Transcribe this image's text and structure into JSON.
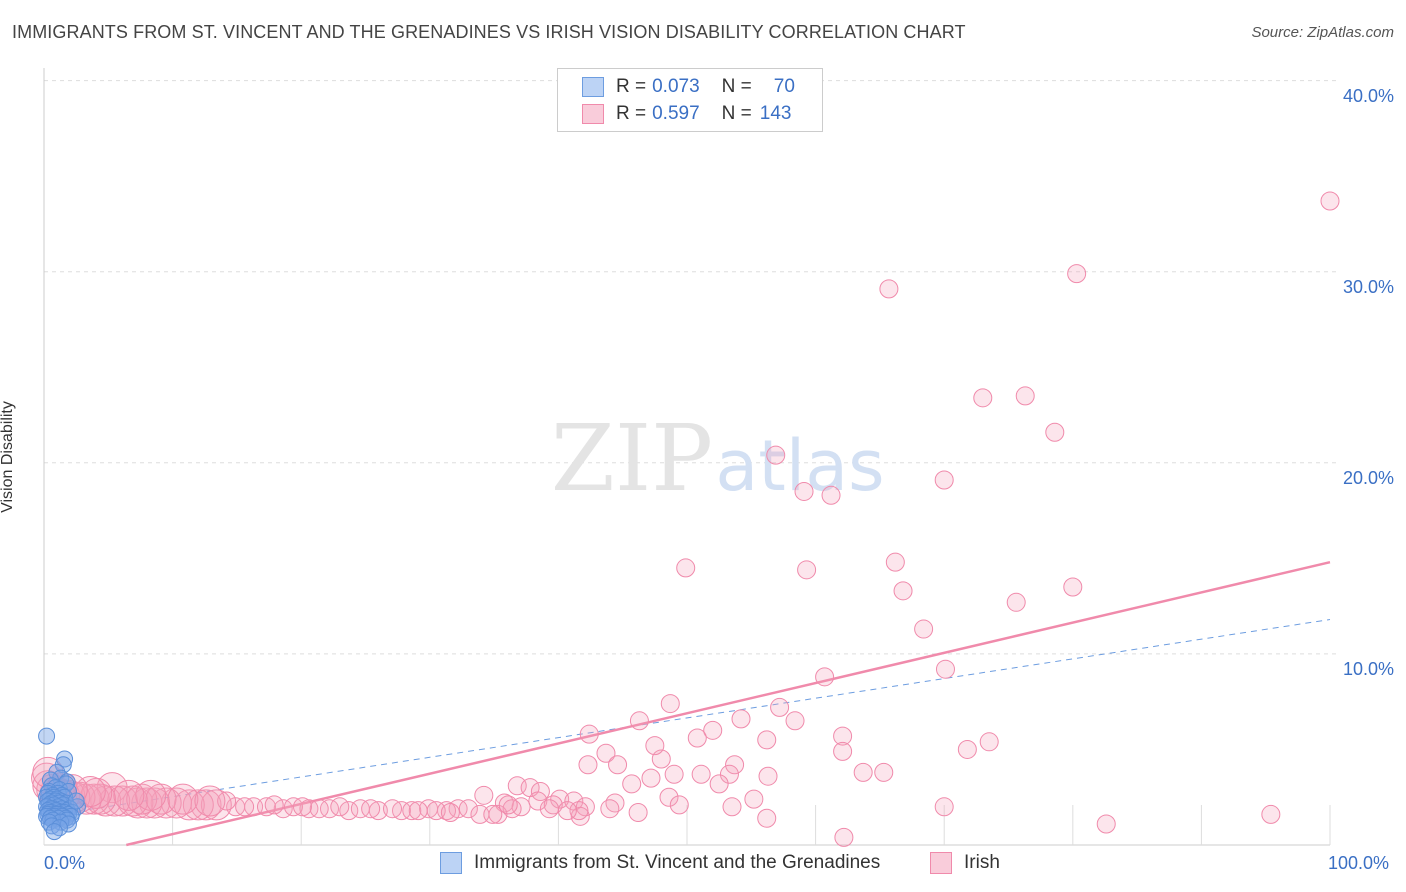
{
  "title": "IMMIGRANTS FROM ST. VINCENT AND THE GRENADINES VS IRISH VISION DISABILITY CORRELATION CHART",
  "source": "Source: ZipAtlas.com",
  "watermark": {
    "zip": "ZIP",
    "atlas": "atlas"
  },
  "legend_top": {
    "rows": [
      {
        "r_label": "R =",
        "r_value": "0.073",
        "n_label": "N =",
        "n_value": "70",
        "color": "#a9c6f0"
      },
      {
        "r_label": "R =",
        "r_value": "0.597",
        "n_label": "N =",
        "n_value": "143",
        "color": "#f5b8cb"
      }
    ]
  },
  "chart_data": {
    "type": "scatter",
    "title": "IMMIGRANTS FROM ST. VINCENT AND THE GRENADINES VS IRISH VISION DISABILITY CORRELATION CHART",
    "xlabel": "",
    "ylabel": "Vision Disability",
    "xlim": [
      0,
      100
    ],
    "ylim": [
      0,
      40
    ],
    "x_tick_labels": [
      "0.0%",
      "100.0%"
    ],
    "y_ticks": [
      10,
      20,
      30,
      40
    ],
    "y_tick_labels": [
      "10.0%",
      "20.0%",
      "30.0%",
      "40.0%"
    ],
    "grid": true,
    "legend_position": "bottom",
    "series": [
      {
        "name": "Immigrants from St. Vincent and the Grenadines",
        "color": "#6d9de0",
        "trend": {
          "x": [
            0,
            100
          ],
          "y": [
            1.5,
            11.8
          ],
          "style": "dashed"
        },
        "points": [
          [
            0.2,
            5.7
          ],
          [
            1.6,
            4.5
          ],
          [
            1.5,
            4.2
          ],
          [
            1.0,
            3.8
          ],
          [
            1.3,
            3.5
          ],
          [
            0.5,
            3.4
          ],
          [
            1.8,
            3.3
          ],
          [
            1.7,
            3.2
          ],
          [
            0.6,
            3.1
          ],
          [
            0.9,
            3.0
          ],
          [
            1.2,
            2.9
          ],
          [
            0.4,
            2.8
          ],
          [
            1.9,
            2.8
          ],
          [
            0.3,
            2.7
          ],
          [
            1.1,
            2.7
          ],
          [
            0.7,
            2.6
          ],
          [
            1.4,
            2.6
          ],
          [
            0.2,
            2.5
          ],
          [
            0.8,
            2.5
          ],
          [
            1.6,
            2.5
          ],
          [
            0.5,
            2.4
          ],
          [
            1.0,
            2.4
          ],
          [
            1.3,
            2.3
          ],
          [
            0.3,
            2.3
          ],
          [
            0.9,
            2.3
          ],
          [
            1.7,
            2.2
          ],
          [
            0.6,
            2.2
          ],
          [
            1.2,
            2.2
          ],
          [
            0.4,
            2.1
          ],
          [
            1.5,
            2.1
          ],
          [
            0.8,
            2.1
          ],
          [
            2.6,
            2.0
          ],
          [
            0.2,
            2.0
          ],
          [
            1.1,
            2.0
          ],
          [
            0.7,
            1.9
          ],
          [
            1.4,
            1.9
          ],
          [
            0.5,
            1.9
          ],
          [
            2.0,
            1.9
          ],
          [
            1.0,
            1.8
          ],
          [
            0.3,
            1.8
          ],
          [
            1.8,
            1.8
          ],
          [
            0.9,
            1.8
          ],
          [
            1.3,
            1.7
          ],
          [
            0.6,
            1.7
          ],
          [
            1.6,
            1.7
          ],
          [
            0.4,
            1.7
          ],
          [
            2.2,
            1.7
          ],
          [
            1.2,
            1.6
          ],
          [
            0.8,
            1.6
          ],
          [
            1.9,
            1.6
          ],
          [
            0.3,
            1.6
          ],
          [
            1.0,
            1.6
          ],
          [
            1.5,
            1.5
          ],
          [
            0.6,
            1.5
          ],
          [
            2.1,
            1.5
          ],
          [
            0.9,
            1.5
          ],
          [
            1.4,
            1.5
          ],
          [
            0.2,
            1.5
          ],
          [
            1.7,
            1.4
          ],
          [
            1.1,
            1.4
          ],
          [
            0.5,
            1.4
          ],
          [
            1.8,
            1.3
          ],
          [
            0.7,
            1.3
          ],
          [
            1.3,
            1.2
          ],
          [
            0.4,
            1.2
          ],
          [
            1.9,
            1.1
          ],
          [
            0.6,
            1.0
          ],
          [
            1.2,
            0.9
          ],
          [
            0.8,
            0.7
          ],
          [
            2.5,
            2.3
          ]
        ]
      },
      {
        "name": "Irish",
        "color": "#f08aab",
        "trend": {
          "x": [
            6.4,
            100
          ],
          "y": [
            0,
            14.8
          ],
          "style": "solid"
        },
        "points": [
          [
            100,
            33.7
          ],
          [
            80.3,
            29.9
          ],
          [
            65.7,
            29.1
          ],
          [
            73.0,
            23.4
          ],
          [
            76.3,
            23.5
          ],
          [
            78.6,
            21.6
          ],
          [
            56.9,
            20.4
          ],
          [
            70.0,
            19.1
          ],
          [
            59.1,
            18.5
          ],
          [
            61.2,
            18.3
          ],
          [
            66.2,
            14.8
          ],
          [
            49.9,
            14.5
          ],
          [
            59.3,
            14.4
          ],
          [
            80.0,
            13.5
          ],
          [
            66.8,
            13.3
          ],
          [
            75.6,
            12.7
          ],
          [
            68.4,
            11.3
          ],
          [
            70.1,
            9.2
          ],
          [
            60.7,
            8.8
          ],
          [
            48.7,
            7.4
          ],
          [
            57.2,
            7.2
          ],
          [
            54.2,
            6.6
          ],
          [
            58.4,
            6.5
          ],
          [
            46.3,
            6.5
          ],
          [
            52.0,
            6.0
          ],
          [
            42.4,
            5.8
          ],
          [
            62.1,
            5.7
          ],
          [
            50.8,
            5.6
          ],
          [
            56.2,
            5.5
          ],
          [
            73.5,
            5.4
          ],
          [
            71.8,
            5.0
          ],
          [
            62.1,
            4.9
          ],
          [
            43.7,
            4.8
          ],
          [
            48.0,
            4.5
          ],
          [
            47.5,
            5.2
          ],
          [
            42.3,
            4.2
          ],
          [
            44.6,
            4.2
          ],
          [
            53.7,
            4.2
          ],
          [
            53.3,
            3.7
          ],
          [
            63.7,
            3.8
          ],
          [
            65.3,
            3.8
          ],
          [
            51.1,
            3.7
          ],
          [
            49.0,
            3.7
          ],
          [
            56.3,
            3.6
          ],
          [
            47.2,
            3.5
          ],
          [
            52.5,
            3.2
          ],
          [
            45.7,
            3.2
          ],
          [
            36.8,
            3.1
          ],
          [
            37.8,
            3.0
          ],
          [
            5.3,
            3.0
          ],
          [
            38.6,
            2.8
          ],
          [
            34.2,
            2.6
          ],
          [
            48.6,
            2.5
          ],
          [
            55.2,
            2.4
          ],
          [
            40.1,
            2.4
          ],
          [
            41.2,
            2.3
          ],
          [
            38.4,
            2.3
          ],
          [
            35.8,
            2.2
          ],
          [
            44.4,
            2.2
          ],
          [
            39.6,
            2.1
          ],
          [
            42.1,
            2.0
          ],
          [
            37.1,
            2.0
          ],
          [
            70.0,
            2.0
          ],
          [
            53.5,
            2.0
          ],
          [
            36.4,
            1.9
          ],
          [
            32.2,
            1.9
          ],
          [
            29.9,
            1.9
          ],
          [
            33.0,
            1.9
          ],
          [
            31.3,
            1.8
          ],
          [
            30.5,
            1.8
          ],
          [
            27.8,
            1.8
          ],
          [
            28.6,
            1.8
          ],
          [
            26.0,
            1.8
          ],
          [
            23.7,
            1.8
          ],
          [
            24.6,
            1.9
          ],
          [
            22.2,
            1.9
          ],
          [
            20.6,
            1.9
          ],
          [
            25.4,
            1.9
          ],
          [
            21.4,
            1.9
          ],
          [
            18.6,
            1.9
          ],
          [
            19.4,
            2.0
          ],
          [
            16.3,
            2.0
          ],
          [
            17.3,
            2.0
          ],
          [
            14.9,
            2.0
          ],
          [
            15.6,
            2.0
          ],
          [
            12.6,
            2.1
          ],
          [
            13.4,
            2.1
          ],
          [
            11.3,
            2.1
          ],
          [
            12.0,
            2.1
          ],
          [
            10.3,
            2.2
          ],
          [
            9.5,
            2.2
          ],
          [
            8.6,
            2.2
          ],
          [
            7.3,
            2.2
          ],
          [
            8.0,
            2.2
          ],
          [
            6.1,
            2.3
          ],
          [
            6.9,
            2.3
          ],
          [
            4.8,
            2.3
          ],
          [
            5.5,
            2.3
          ],
          [
            3.9,
            2.4
          ],
          [
            4.4,
            2.4
          ],
          [
            3.3,
            2.4
          ],
          [
            2.8,
            2.5
          ],
          [
            2.4,
            2.5
          ],
          [
            2.0,
            2.6
          ],
          [
            1.6,
            2.6
          ],
          [
            1.2,
            2.7
          ],
          [
            0.9,
            2.8
          ],
          [
            0.6,
            2.9
          ],
          [
            0.3,
            3.1
          ],
          [
            0.2,
            3.5
          ],
          [
            0.3,
            3.8
          ],
          [
            7.6,
            2.4
          ],
          [
            9.1,
            2.4
          ],
          [
            10.8,
            2.4
          ],
          [
            14.2,
            2.3
          ],
          [
            8.3,
            2.6
          ],
          [
            6.6,
            2.6
          ],
          [
            4.1,
            2.7
          ],
          [
            3.6,
            2.8
          ],
          [
            2.2,
            2.9
          ],
          [
            1.4,
            3.0
          ],
          [
            17.9,
            2.1
          ],
          [
            20.1,
            2.0
          ],
          [
            23.0,
            2.0
          ],
          [
            27.1,
            1.9
          ],
          [
            29.1,
            1.8
          ],
          [
            31.6,
            1.7
          ],
          [
            33.9,
            1.6
          ],
          [
            35.3,
            1.6
          ],
          [
            41.7,
            1.5
          ],
          [
            41.6,
            1.8
          ],
          [
            40.7,
            1.8
          ],
          [
            34.9,
            1.6
          ],
          [
            56.2,
            1.4
          ],
          [
            82.6,
            1.1
          ],
          [
            95.4,
            1.6
          ],
          [
            62.2,
            0.4
          ],
          [
            49.4,
            2.1
          ],
          [
            46.2,
            1.7
          ],
          [
            44.0,
            1.9
          ],
          [
            39.3,
            1.9
          ],
          [
            36.1,
            2.1
          ],
          [
            12.9,
            2.3
          ]
        ]
      }
    ]
  },
  "bottom_legend": [
    {
      "label": "Immigrants from St. Vincent and the Grenadines",
      "color": "#a9c6f0"
    },
    {
      "label": "Irish",
      "color": "#f5b8cb"
    }
  ]
}
